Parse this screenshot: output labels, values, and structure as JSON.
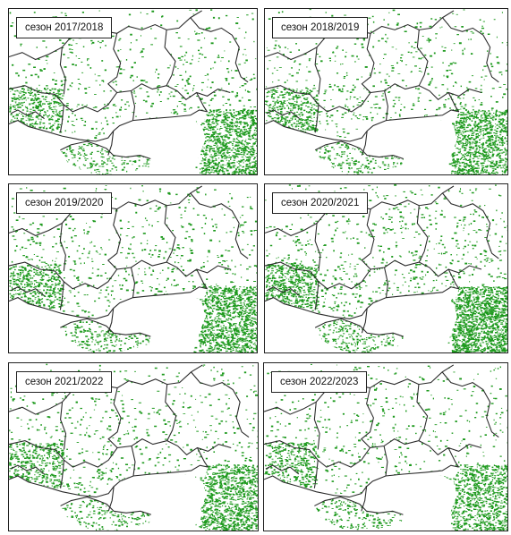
{
  "panels": [
    {
      "label": "сезон 2017/2018",
      "density": 0.55
    },
    {
      "label": "сезон 2018/2019",
      "density": 0.55
    },
    {
      "label": "сезон 2019/2020",
      "density": 0.6
    },
    {
      "label": "сезон 2020/2021",
      "density": 0.75
    },
    {
      "label": "сезон 2021/2022",
      "density": 0.55
    },
    {
      "label": "сезон 2022/2023",
      "density": 0.5
    }
  ],
  "colors": {
    "crop": "#1e9a1e",
    "border": "#2a2a2a",
    "sea": "#ffffff"
  }
}
